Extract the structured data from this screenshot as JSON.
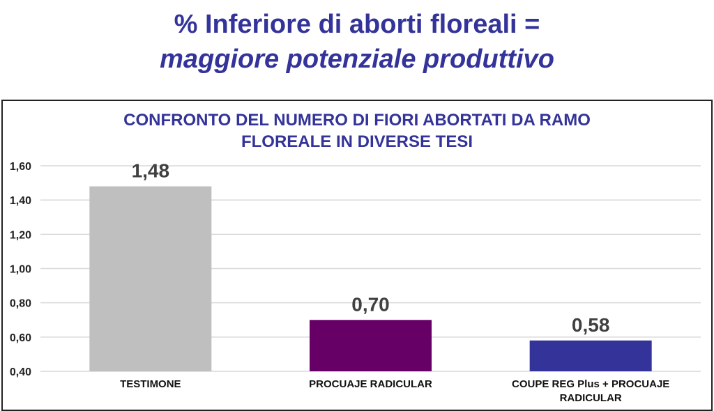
{
  "headline": {
    "line1": "% Inferiore di aborti floreali =",
    "line2": "maggiore potenziale produttivo"
  },
  "chart_data": {
    "type": "bar",
    "title_line1": "CONFRONTO DEL NUMERO DI FIORI ABORTATI DA RAMO",
    "title_line2": "FLOREALE IN DIVERSE TESI",
    "categories": [
      [
        "TESTIMONE"
      ],
      [
        "PROCUAJE RADICULAR"
      ],
      [
        "COUPE REG Plus + PROCUAJE",
        "RADICULAR"
      ]
    ],
    "values": [
      1.48,
      0.7,
      0.58
    ],
    "data_labels": [
      "1,48",
      "0,70",
      "0,58"
    ],
    "colors": [
      "#bfbfbf",
      "#660066",
      "#333399"
    ],
    "ylim": [
      0.4,
      1.6
    ],
    "yticks": [
      0.4,
      0.6,
      0.8,
      1.0,
      1.2,
      1.4,
      1.6
    ],
    "ytick_labels": [
      "0,40",
      "0,60",
      "0,80",
      "1,00",
      "1,20",
      "1,40",
      "1,60"
    ],
    "grid": true,
    "legend": "none",
    "xlabel": "",
    "ylabel": ""
  }
}
